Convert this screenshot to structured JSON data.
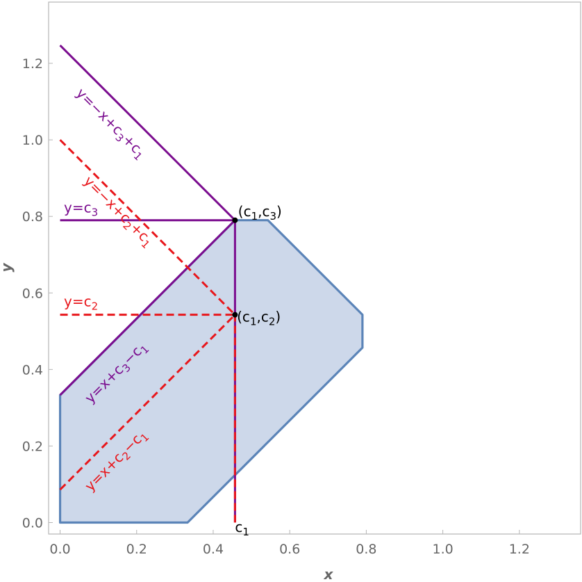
{
  "chart_data": {
    "type": "line",
    "xlabel": "x",
    "ylabel": "y",
    "xlim": [
      -0.03,
      1.36
    ],
    "ylim": [
      -0.03,
      1.36
    ],
    "xticks": [
      0.0,
      0.2,
      0.4,
      0.6,
      0.8,
      1.0,
      1.2
    ],
    "yticks": [
      0.0,
      0.2,
      0.4,
      0.6,
      0.8,
      1.0,
      1.2
    ],
    "xtick_labels": [
      "0.0",
      "0.2",
      "0.4",
      "0.6",
      "0.8",
      "1.0",
      "1.2"
    ],
    "ytick_labels": [
      "0.0",
      "0.2",
      "0.4",
      "0.6",
      "0.8",
      "1.0",
      "1.2"
    ],
    "grid": false,
    "frame": true,
    "colors": {
      "region_fill": "#cdd8ea",
      "region_edge": "#5b84b8",
      "purple": "#7b0d8f",
      "red": "#e8161b",
      "point": "#000000",
      "frame": "#b5b5b5"
    },
    "region": {
      "polygon": [
        [
          0,
          0
        ],
        [
          0.333,
          0
        ],
        [
          0.79,
          0.457
        ],
        [
          0.79,
          0.543
        ],
        [
          0.543,
          0.79
        ],
        [
          0.457,
          0.79
        ],
        [
          0,
          0.333
        ]
      ]
    },
    "series": [
      {
        "id": "p1",
        "style": "solid",
        "color": "purple",
        "points": [
          [
            0,
            1.247
          ],
          [
            0.457,
            0.79
          ]
        ]
      },
      {
        "id": "p2",
        "style": "solid",
        "color": "purple",
        "points": [
          [
            0,
            0.79
          ],
          [
            0.457,
            0.79
          ]
        ]
      },
      {
        "id": "p3",
        "style": "solid",
        "color": "purple",
        "points": [
          [
            0,
            0.333
          ],
          [
            0.457,
            0.79
          ]
        ]
      },
      {
        "id": "p4",
        "style": "solid",
        "color": "purple",
        "points": [
          [
            0.457,
            0
          ],
          [
            0.457,
            0.79
          ]
        ]
      },
      {
        "id": "r1",
        "style": "dashed",
        "color": "red",
        "points": [
          [
            0,
            1.0
          ],
          [
            0.457,
            0.543
          ]
        ]
      },
      {
        "id": "r2",
        "style": "dashed",
        "color": "red",
        "points": [
          [
            0,
            0.543
          ],
          [
            0.457,
            0.543
          ]
        ]
      },
      {
        "id": "r3",
        "style": "dashed",
        "color": "red",
        "points": [
          [
            0,
            0.086
          ],
          [
            0.457,
            0.543
          ]
        ]
      },
      {
        "id": "r4",
        "style": "dashed",
        "color": "red",
        "points": [
          [
            0.457,
            0
          ],
          [
            0.457,
            0.543
          ]
        ]
      }
    ],
    "points": [
      {
        "id": "pt-c1c3",
        "x": 0.457,
        "y": 0.79
      },
      {
        "id": "pt-c1c2",
        "x": 0.457,
        "y": 0.543
      }
    ],
    "annotations": [
      {
        "id": "lbl-y-neg-x-c3-c1",
        "color": "purple",
        "text": "y=−x+c3+c1",
        "x": 0.04,
        "y": 1.12,
        "angle": 45
      },
      {
        "id": "lbl-y-neg-x-c2-c1",
        "color": "red",
        "text": "y=−x+c2+c1",
        "x": 0.06,
        "y": 0.89,
        "angle": 45
      },
      {
        "id": "lbl-y-c3",
        "color": "purple",
        "text": "y=c3",
        "x": 0.01,
        "y": 0.81,
        "angle": 0
      },
      {
        "id": "lbl-y-c2",
        "color": "red",
        "text": "y=c2",
        "x": 0.01,
        "y": 0.565,
        "angle": 0
      },
      {
        "id": "lbl-y-x-c3-c1",
        "color": "purple",
        "text": "y=x+c3−c1",
        "x": 0.08,
        "y": 0.31,
        "angle": -45
      },
      {
        "id": "lbl-y-x-c2-c1",
        "color": "red",
        "text": "y=x+c2−c1",
        "x": 0.08,
        "y": 0.08,
        "angle": -45
      },
      {
        "id": "lbl-c1c3",
        "color": "point",
        "text": "(c1,c3)",
        "x": 0.465,
        "y": 0.8,
        "angle": 0
      },
      {
        "id": "lbl-c1c2",
        "color": "point",
        "text": "(c1,c2)",
        "x": 0.462,
        "y": 0.525,
        "angle": 0
      },
      {
        "id": "lbl-c1",
        "color": "point",
        "text": "c1",
        "x": 0.457,
        "y": -0.025,
        "angle": 0
      }
    ]
  }
}
